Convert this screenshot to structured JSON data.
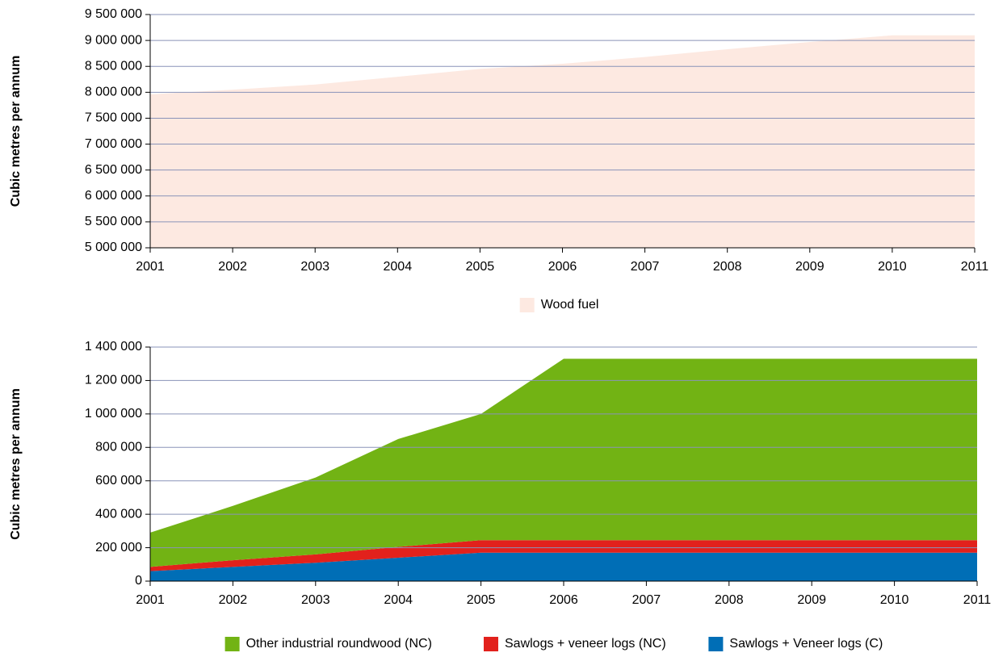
{
  "chart_data": [
    {
      "type": "area",
      "ylabel": "Cubic metres per annum",
      "x": [
        2001,
        2002,
        2003,
        2004,
        2005,
        2006,
        2007,
        2008,
        2009,
        2010,
        2011
      ],
      "xlim": [
        2001,
        2011
      ],
      "xticks": [
        2001,
        2002,
        2003,
        2004,
        2005,
        2006,
        2007,
        2008,
        2009,
        2010,
        2011
      ],
      "ylim": [
        5000000,
        9500000
      ],
      "yticks": [
        {
          "value": 5000000,
          "label": "5 000 000"
        },
        {
          "value": 5500000,
          "label": "5 500 000"
        },
        {
          "value": 6000000,
          "label": "6 000 000"
        },
        {
          "value": 6500000,
          "label": "6 500 000"
        },
        {
          "value": 7000000,
          "label": "7 000 000"
        },
        {
          "value": 7500000,
          "label": "7 500 000"
        },
        {
          "value": 8000000,
          "label": "8 000 000"
        },
        {
          "value": 8500000,
          "label": "8 500 000"
        },
        {
          "value": 9000000,
          "label": "9 000 000"
        },
        {
          "value": 9500000,
          "label": "9 500 000"
        }
      ],
      "grid": true,
      "legend": "bottom",
      "series": [
        {
          "name": "Wood fuel",
          "color": "#fde9e1",
          "values": [
            7960000,
            8050000,
            8150000,
            8300000,
            8450000,
            8550000,
            8680000,
            8830000,
            8970000,
            9100000,
            9100000
          ]
        }
      ]
    },
    {
      "type": "stacked_area",
      "ylabel": "Cubic metres per annum",
      "x": [
        2001,
        2002,
        2003,
        2004,
        2005,
        2006,
        2007,
        2008,
        2009,
        2010,
        2011
      ],
      "xlim": [
        2001,
        2011
      ],
      "xticks": [
        2001,
        2002,
        2003,
        2004,
        2005,
        2006,
        2007,
        2008,
        2009,
        2010,
        2011
      ],
      "ylim": [
        0,
        1400000
      ],
      "yticks": [
        0,
        {
          "value": 200000,
          "label": "200 000"
        },
        {
          "value": 400000,
          "label": "400 000"
        },
        {
          "value": 600000,
          "label": "600 000"
        },
        {
          "value": 800000,
          "label": "800 000"
        },
        {
          "value": 1000000,
          "label": "1 000 000"
        },
        {
          "value": 1200000,
          "label": "1 200 000"
        },
        {
          "value": 1400000,
          "label": "1 400 000"
        }
      ],
      "grid": true,
      "legend": "bottom",
      "series": [
        {
          "name": "Other industrial roundwood (NC)",
          "color": "#72b314",
          "values": [
            205000,
            325000,
            460000,
            645000,
            755000,
            1085000,
            1085000,
            1085000,
            1085000,
            1085000,
            1085000
          ]
        },
        {
          "name": "Sawlogs + veneer logs (NC)",
          "color": "#e2211c",
          "values": [
            25000,
            40000,
            50000,
            65000,
            75000,
            75000,
            75000,
            75000,
            75000,
            75000,
            75000
          ]
        },
        {
          "name": "Sawlogs + Veneer logs (C)",
          "color": "#006eb6",
          "values": [
            60000,
            85000,
            110000,
            140000,
            170000,
            170000,
            170000,
            170000,
            170000,
            170000,
            170000
          ]
        }
      ]
    }
  ]
}
